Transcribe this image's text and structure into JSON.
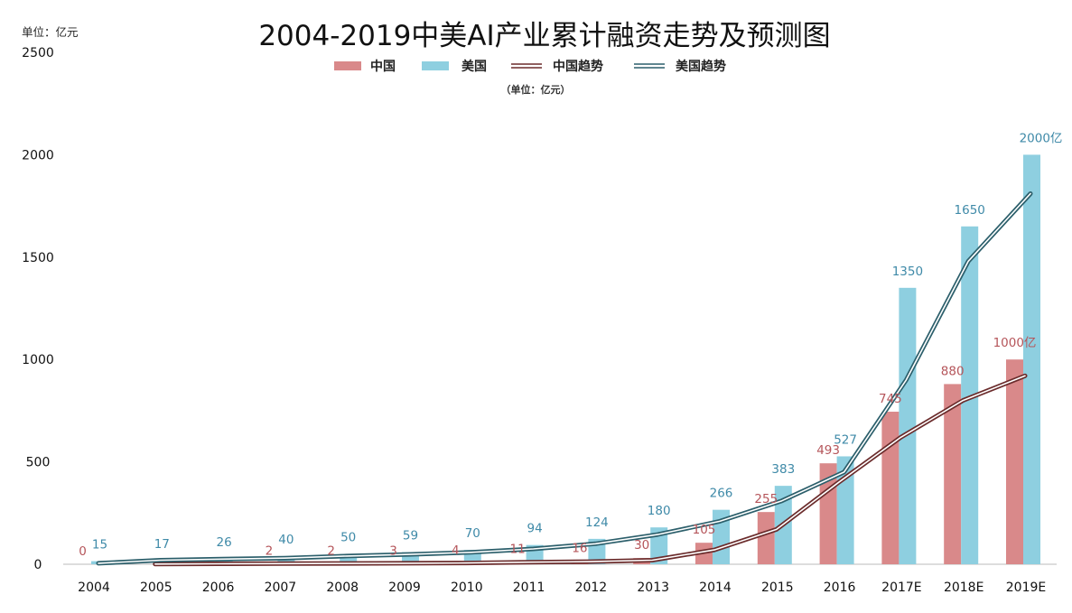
{
  "chart_data": {
    "type": "bar",
    "title": "2004-2019中美AI产业累计融资走势及预测图",
    "unit_top": "单位：亿元",
    "unit_legend": "（单位：亿元）",
    "categories": [
      "2004",
      "2005",
      "2006",
      "2007",
      "2008",
      "2009",
      "2010",
      "2011",
      "2012",
      "2013",
      "2014",
      "2015",
      "2016",
      "2017E",
      "2018E",
      "2019E"
    ],
    "series": [
      {
        "name": "中国",
        "kind": "bar",
        "color": "#d9898a",
        "values": [
          0,
          null,
          null,
          2,
          2,
          3,
          4,
          11,
          16,
          30,
          105,
          255,
          493,
          745,
          880,
          1000
        ],
        "labels": [
          "0",
          "",
          "",
          "2",
          "2",
          "3",
          "4",
          "11",
          "16",
          "30",
          "105",
          "255",
          "493",
          "745",
          "880",
          "1000亿"
        ]
      },
      {
        "name": "美国",
        "kind": "bar",
        "color": "#8ecfe0",
        "values": [
          15,
          17,
          26,
          40,
          50,
          59,
          70,
          94,
          124,
          180,
          266,
          383,
          527,
          1350,
          1650,
          2000
        ],
        "labels": [
          "15",
          "17",
          "26",
          "40",
          "50",
          "59",
          "70",
          "94",
          "124",
          "180",
          "266",
          "383",
          "527",
          "1350",
          "1650",
          "2000亿"
        ]
      },
      {
        "name": "中国趋势",
        "kind": "line",
        "color": "#6b2c2c",
        "values": [
          null,
          1,
          2,
          3,
          4,
          5,
          6,
          10,
          13,
          20,
          70,
          170,
          400,
          620,
          800,
          920
        ]
      },
      {
        "name": "美国趋势",
        "kind": "line",
        "color": "#2c5f6b",
        "values": [
          5,
          20,
          25,
          30,
          40,
          48,
          58,
          75,
          100,
          145,
          210,
          310,
          450,
          900,
          1480,
          1810
        ]
      }
    ],
    "yticks": [
      "0",
      "500",
      "1000",
      "1500",
      "2000",
      "2500"
    ],
    "ylim": [
      0,
      2500
    ],
    "legend_position": "top-center",
    "grid": false
  }
}
